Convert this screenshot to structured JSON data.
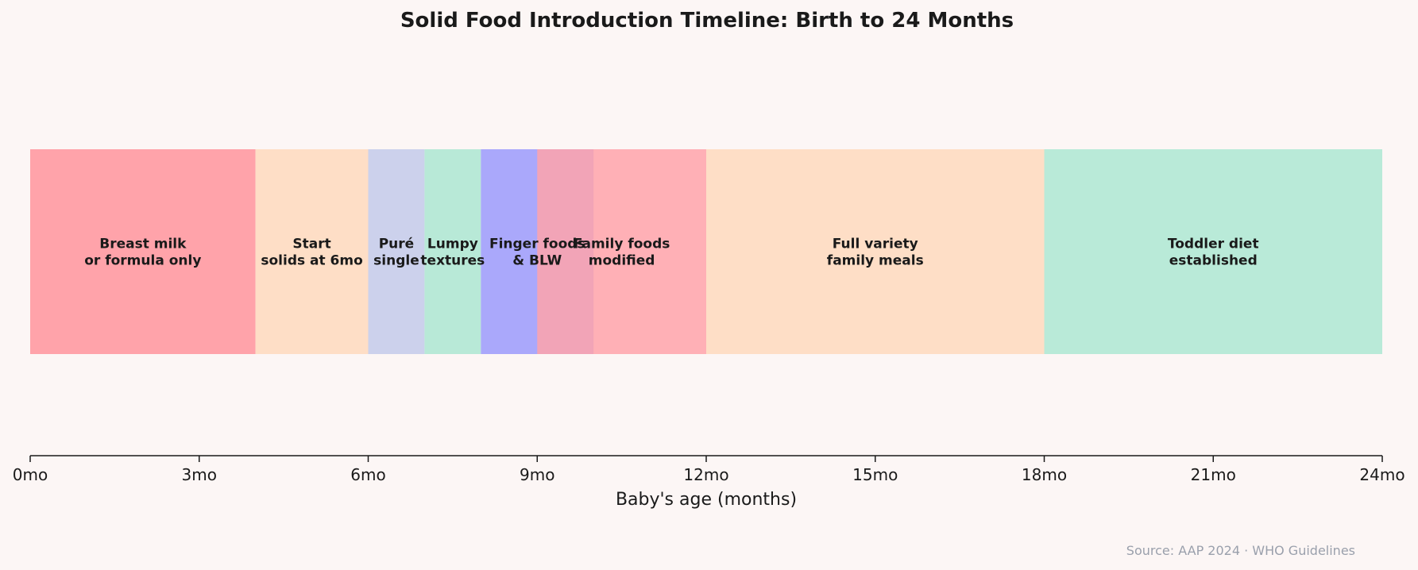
{
  "chart_data": {
    "type": "bar",
    "orientation": "horizontal-stacked-timeline",
    "title": "Solid Food Introduction Timeline: Birth to 24 Months",
    "xlabel": "Baby's age (months)",
    "ylabel": "",
    "xlim": [
      0,
      24
    ],
    "xticks": [
      0,
      3,
      6,
      9,
      12,
      15,
      18,
      21,
      24
    ],
    "xtick_labels": [
      "0mo",
      "3mo",
      "6mo",
      "9mo",
      "12mo",
      "15mo",
      "18mo",
      "21mo",
      "24mo"
    ],
    "grid": false,
    "segments": [
      {
        "start": 0,
        "end": 4,
        "label": [
          "Breast milk",
          "or formula only"
        ],
        "color": "#ffa3aa"
      },
      {
        "start": 4,
        "end": 6,
        "label": [
          "Start",
          "solids at 6mo"
        ],
        "color": "#fedec6"
      },
      {
        "start": 6,
        "end": 7,
        "label": [
          "Puré",
          "single"
        ],
        "color": "#ccd1ec"
      },
      {
        "start": 7,
        "end": 8,
        "label": [
          "Lumpy",
          "textures"
        ],
        "color": "#b8e9d7"
      },
      {
        "start": 8,
        "end": 10,
        "label": [
          "Finger foods",
          "& BLW"
        ],
        "color": "#aaa8fb"
      },
      {
        "start": 9,
        "end": 12,
        "label": [
          "Family foods",
          "modified"
        ],
        "color": "#ffa3aa",
        "alpha": 0.85
      },
      {
        "start": 12,
        "end": 18,
        "label": [
          "Full variety",
          "family meals"
        ],
        "color": "#fedec6"
      },
      {
        "start": 18,
        "end": 24,
        "label": [
          "Toddler diet",
          "established"
        ],
        "color": "#b9ead8"
      }
    ],
    "source": "Source: AAP 2024 · WHO Guidelines"
  }
}
